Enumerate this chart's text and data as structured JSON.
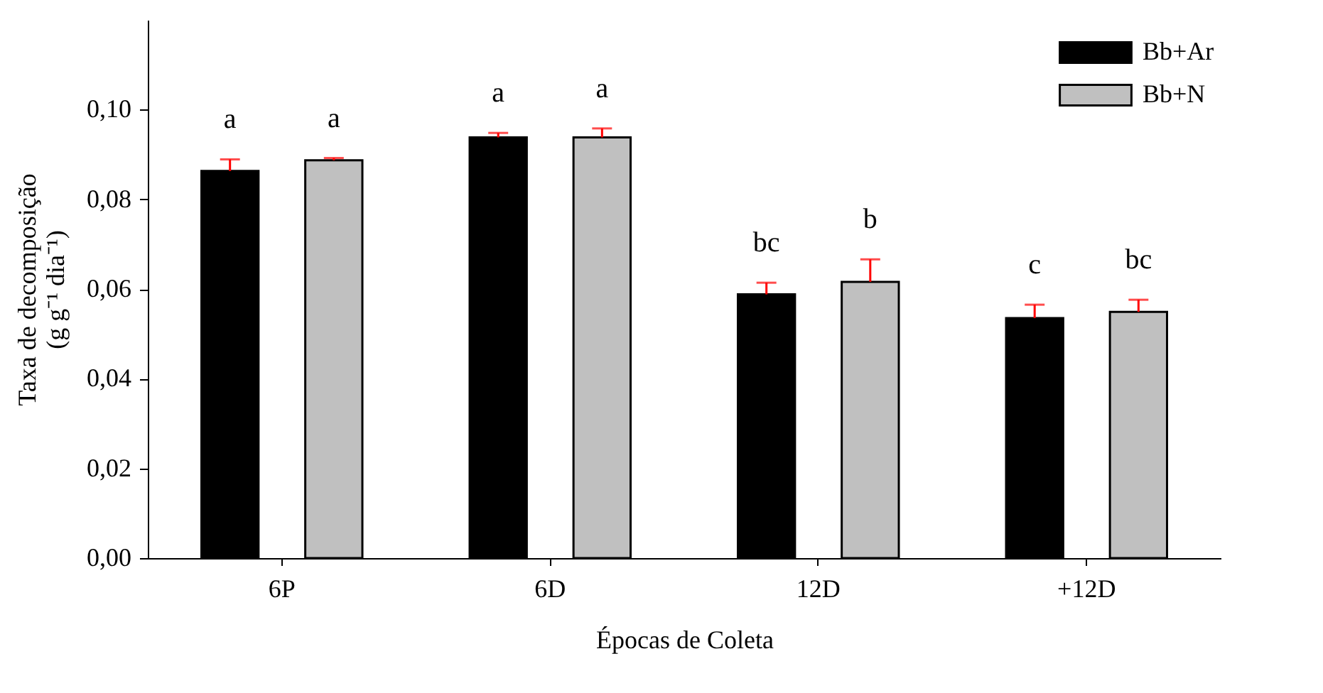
{
  "chart_data": {
    "type": "bar",
    "xlabel": "Épocas de Coleta",
    "ylabel": "Taxa de decomposição (g g⁻¹ dia⁻¹)",
    "categories": [
      "6P",
      "6D",
      "12D",
      "+12D"
    ],
    "series": [
      {
        "name": "Bb+Ar",
        "color": "#000000",
        "values": [
          0.0863,
          0.0938,
          0.0588,
          0.0535
        ],
        "errors": [
          0.0026,
          0.001,
          0.0026,
          0.003
        ],
        "value_labels": [
          "a",
          "a",
          "bc",
          "c"
        ]
      },
      {
        "name": "Bb+N",
        "color": "#c0c0c0",
        "values": [
          0.0887,
          0.0938,
          0.0616,
          0.0549
        ],
        "errors": [
          0.0005,
          0.002,
          0.005,
          0.0027
        ],
        "value_labels": [
          "a",
          "a",
          "b",
          "bc"
        ]
      }
    ],
    "ylim": [
      0,
      0.12
    ],
    "yticks": [
      {
        "value": 0,
        "label": "0,00"
      },
      {
        "value": 0.02,
        "label": "0,02"
      },
      {
        "value": 0.04,
        "label": "0,04"
      },
      {
        "value": 0.06,
        "label": "0,06"
      },
      {
        "value": 0.08,
        "label": "0,08"
      },
      {
        "value": 0.1,
        "label": "0,10"
      }
    ],
    "grid": false,
    "legend": "top right"
  }
}
